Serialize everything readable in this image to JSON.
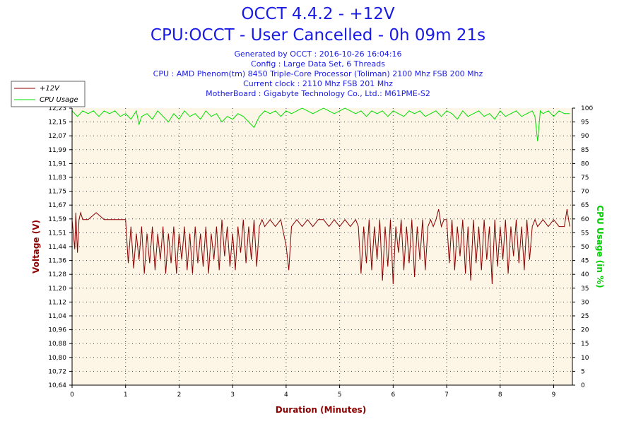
{
  "header": {
    "title": "OCCT 4.4.2 - +12V",
    "subtitle": "CPU:OCCT - User Cancelled - 0h 09m 21s",
    "generated": "Generated by OCCT : 2016-10-26 16:04:16",
    "config": "Config : Large Data Set, 6 Threads",
    "cpu": "CPU : AMD Phenom(tm) 8450 Triple-Core Processor (Toliman) 2100 Mhz FSB 200 Mhz",
    "clock": "Current clock : 2110 Mhz FSB 201 Mhz",
    "motherboard": "MotherBoard : Gigabyte Technology Co., Ltd.: M61PME-S2"
  },
  "colors": {
    "voltage": "#8b0000",
    "cpu": "#00e000",
    "text": "#1a1ae6",
    "plot_bg": "#fdf5e6",
    "grid": "#444444"
  },
  "chart_data": {
    "type": "line",
    "xlabel": "Duration (Minutes)",
    "ylabel": "Voltage (V)",
    "y2label": "CPU Usage (in %)",
    "xlim": [
      0,
      9.35
    ],
    "ylim": [
      10.64,
      12.23
    ],
    "y2lim": [
      0,
      100
    ],
    "x_ticks": [
      "0",
      "1",
      "2",
      "3",
      "4",
      "5",
      "6",
      "7",
      "8",
      "9"
    ],
    "y_ticks": [
      "12,23",
      "12,15",
      "12,07",
      "11,99",
      "11,91",
      "11,83",
      "11,75",
      "11,67",
      "11,59",
      "11,51",
      "11,44",
      "11,36",
      "11,28",
      "11,20",
      "11,12",
      "11,04",
      "10,96",
      "10,88",
      "10,80",
      "10,72",
      "10,64"
    ],
    "y2_ticks": [
      "100",
      "95",
      "90",
      "85",
      "80",
      "75",
      "70",
      "65",
      "60",
      "55",
      "50",
      "45",
      "40",
      "35",
      "30",
      "25",
      "20",
      "15",
      "10",
      "5",
      "0"
    ],
    "grid": true,
    "legend_placement": "top-left",
    "series": [
      {
        "name": "+12V",
        "axis": "left",
        "x": [
          0,
          0.05,
          0.07,
          0.1,
          0.13,
          0.16,
          0.2,
          0.3,
          0.45,
          0.6,
          0.75,
          0.9,
          0.95,
          1.0,
          1.05,
          1.1,
          1.15,
          1.2,
          1.25,
          1.3,
          1.35,
          1.4,
          1.45,
          1.5,
          1.55,
          1.6,
          1.65,
          1.7,
          1.75,
          1.8,
          1.85,
          1.9,
          1.95,
          2.0,
          2.05,
          2.1,
          2.15,
          2.2,
          2.25,
          2.3,
          2.35,
          2.4,
          2.45,
          2.5,
          2.55,
          2.6,
          2.65,
          2.7,
          2.75,
          2.8,
          2.85,
          2.9,
          2.95,
          3.0,
          3.05,
          3.1,
          3.15,
          3.2,
          3.25,
          3.3,
          3.35,
          3.4,
          3.45,
          3.5,
          3.55,
          3.6,
          3.7,
          3.8,
          3.9,
          4.0,
          4.05,
          4.1,
          4.2,
          4.3,
          4.4,
          4.5,
          4.6,
          4.7,
          4.8,
          4.9,
          5.0,
          5.1,
          5.2,
          5.3,
          5.35,
          5.4,
          5.45,
          5.5,
          5.55,
          5.6,
          5.65,
          5.7,
          5.75,
          5.8,
          5.85,
          5.9,
          5.95,
          6.0,
          6.05,
          6.1,
          6.15,
          6.2,
          6.25,
          6.3,
          6.35,
          6.4,
          6.45,
          6.5,
          6.55,
          6.6,
          6.65,
          6.7,
          6.75,
          6.8,
          6.85,
          6.9,
          6.95,
          7.0,
          7.05,
          7.1,
          7.15,
          7.2,
          7.25,
          7.3,
          7.35,
          7.4,
          7.45,
          7.5,
          7.55,
          7.6,
          7.65,
          7.7,
          7.75,
          7.8,
          7.85,
          7.9,
          7.95,
          8.0,
          8.05,
          8.1,
          8.15,
          8.2,
          8.25,
          8.3,
          8.35,
          8.4,
          8.45,
          8.5,
          8.55,
          8.6,
          8.65,
          8.7,
          8.8,
          8.9,
          9.0,
          9.1,
          9.2,
          9.25,
          9.3
        ],
        "y": [
          11.59,
          11.42,
          11.63,
          11.4,
          11.59,
          11.63,
          11.59,
          11.59,
          11.63,
          11.59,
          11.59,
          11.59,
          11.59,
          11.59,
          11.34,
          11.55,
          11.31,
          11.51,
          11.36,
          11.55,
          11.28,
          11.51,
          11.34,
          11.55,
          11.3,
          11.51,
          11.36,
          11.55,
          11.28,
          11.51,
          11.34,
          11.55,
          11.28,
          11.51,
          11.36,
          11.55,
          11.3,
          11.51,
          11.28,
          11.55,
          11.34,
          11.51,
          11.32,
          11.55,
          11.28,
          11.51,
          11.36,
          11.55,
          11.3,
          11.59,
          11.38,
          11.55,
          11.32,
          11.51,
          11.3,
          11.55,
          11.4,
          11.59,
          11.34,
          11.55,
          11.36,
          11.59,
          11.32,
          11.55,
          11.59,
          11.55,
          11.59,
          11.55,
          11.59,
          11.44,
          11.3,
          11.55,
          11.59,
          11.55,
          11.59,
          11.55,
          11.59,
          11.59,
          11.55,
          11.59,
          11.55,
          11.59,
          11.55,
          11.59,
          11.55,
          11.28,
          11.55,
          11.34,
          11.59,
          11.3,
          11.55,
          11.36,
          11.59,
          11.24,
          11.55,
          11.32,
          11.59,
          11.22,
          11.55,
          11.4,
          11.59,
          11.3,
          11.55,
          11.34,
          11.59,
          11.26,
          11.55,
          11.36,
          11.59,
          11.3,
          11.55,
          11.59,
          11.55,
          11.59,
          11.65,
          11.55,
          11.59,
          11.59,
          11.34,
          11.59,
          11.3,
          11.55,
          11.38,
          11.59,
          11.28,
          11.55,
          11.24,
          11.59,
          11.34,
          11.55,
          11.3,
          11.59,
          11.36,
          11.55,
          11.22,
          11.59,
          11.32,
          11.55,
          11.36,
          11.59,
          11.28,
          11.55,
          11.38,
          11.59,
          11.34,
          11.55,
          11.3,
          11.59,
          11.36,
          11.55,
          11.59,
          11.55,
          11.59,
          11.55,
          11.59,
          11.55,
          11.55,
          11.65,
          11.55
        ]
      },
      {
        "name": "CPU Usage",
        "axis": "right",
        "x": [
          0,
          0.1,
          0.2,
          0.3,
          0.4,
          0.5,
          0.6,
          0.7,
          0.8,
          0.9,
          1.0,
          1.1,
          1.2,
          1.25,
          1.3,
          1.4,
          1.5,
          1.6,
          1.7,
          1.8,
          1.9,
          2.0,
          2.1,
          2.2,
          2.3,
          2.4,
          2.5,
          2.6,
          2.7,
          2.8,
          2.9,
          3.0,
          3.1,
          3.2,
          3.3,
          3.4,
          3.5,
          3.6,
          3.7,
          3.8,
          3.9,
          4.0,
          4.1,
          4.2,
          4.3,
          4.4,
          4.5,
          4.6,
          4.7,
          4.8,
          4.9,
          5.0,
          5.1,
          5.2,
          5.3,
          5.4,
          5.5,
          5.6,
          5.7,
          5.8,
          5.9,
          6.0,
          6.1,
          6.2,
          6.3,
          6.4,
          6.5,
          6.6,
          6.7,
          6.8,
          6.9,
          7.0,
          7.1,
          7.2,
          7.3,
          7.4,
          7.5,
          7.6,
          7.7,
          7.8,
          7.9,
          8.0,
          8.1,
          8.2,
          8.3,
          8.4,
          8.5,
          8.6,
          8.65,
          8.7,
          8.75,
          8.8,
          8.9,
          9.0,
          9.1,
          9.2,
          9.3
        ],
        "y": [
          99,
          97,
          99,
          98,
          99,
          97,
          99,
          98,
          99,
          97,
          98,
          96,
          99,
          94,
          97,
          98,
          96,
          99,
          97,
          95,
          98,
          96,
          99,
          97,
          98,
          96,
          99,
          97,
          98,
          95,
          97,
          96,
          98,
          97,
          95,
          93,
          97,
          99,
          98,
          99,
          97,
          99,
          98,
          99,
          100,
          99,
          98,
          99,
          100,
          99,
          98,
          99,
          100,
          99,
          98,
          99,
          97,
          99,
          98,
          99,
          97,
          99,
          98,
          97,
          99,
          98,
          99,
          97,
          98,
          99,
          97,
          99,
          98,
          96,
          99,
          97,
          98,
          99,
          97,
          98,
          96,
          99,
          97,
          98,
          99,
          97,
          98,
          99,
          97,
          88,
          99,
          98,
          99,
          97,
          99,
          98,
          98
        ]
      }
    ]
  }
}
